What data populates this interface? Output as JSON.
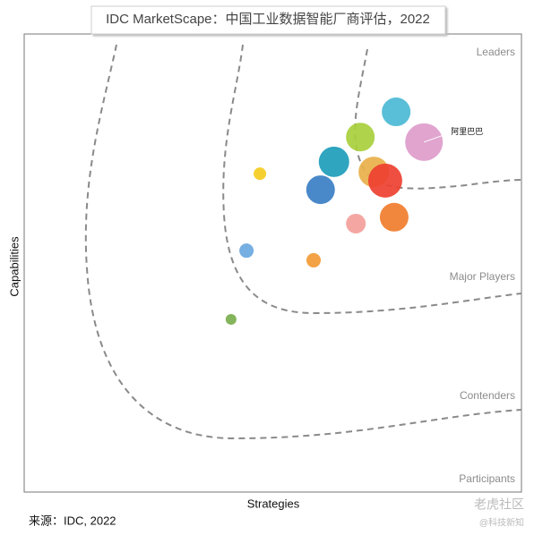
{
  "chart_data": {
    "type": "bubble",
    "title": "IDC MarketScape：中国工业数据智能厂商评估，2022",
    "x_label": "Strategies",
    "y_label": "Capabilities",
    "regions": [
      "Leaders",
      "Major Players",
      "Contenders",
      "Participants"
    ],
    "source": "来源：IDC, 2022",
    "watermark": [
      "老虎社区",
      "@科技新知"
    ],
    "xlim": [
      0,
      100
    ],
    "ylim": [
      0,
      100
    ],
    "points": [
      {
        "x": 74.8,
        "y": 83.0,
        "size": 16,
        "color": "#4bb8d4"
      },
      {
        "x": 80.4,
        "y": 76.4,
        "size": 21,
        "color": "#de9ccb",
        "label": "阿里巴巴"
      },
      {
        "x": 67.6,
        "y": 77.5,
        "size": 16,
        "color": "#a8cf3c"
      },
      {
        "x": 62.3,
        "y": 72.1,
        "size": 17,
        "color": "#1d9dba"
      },
      {
        "x": 70.3,
        "y": 69.9,
        "size": 17,
        "color": "#e8b04a"
      },
      {
        "x": 72.6,
        "y": 68.0,
        "size": 19,
        "color": "#ee4030"
      },
      {
        "x": 59.6,
        "y": 66.0,
        "size": 16,
        "color": "#3b7fc4"
      },
      {
        "x": 74.4,
        "y": 60.0,
        "size": 16,
        "color": "#f07d2c"
      },
      {
        "x": 66.7,
        "y": 58.6,
        "size": 11,
        "color": "#f3a09a"
      },
      {
        "x": 47.4,
        "y": 69.5,
        "size": 7,
        "color": "#f5cc1f"
      },
      {
        "x": 44.7,
        "y": 52.7,
        "size": 8,
        "color": "#6aa8e0"
      },
      {
        "x": 58.2,
        "y": 50.6,
        "size": 8,
        "color": "#f29a35"
      },
      {
        "x": 41.6,
        "y": 37.7,
        "size": 6,
        "color": "#7aae4d"
      }
    ]
  }
}
